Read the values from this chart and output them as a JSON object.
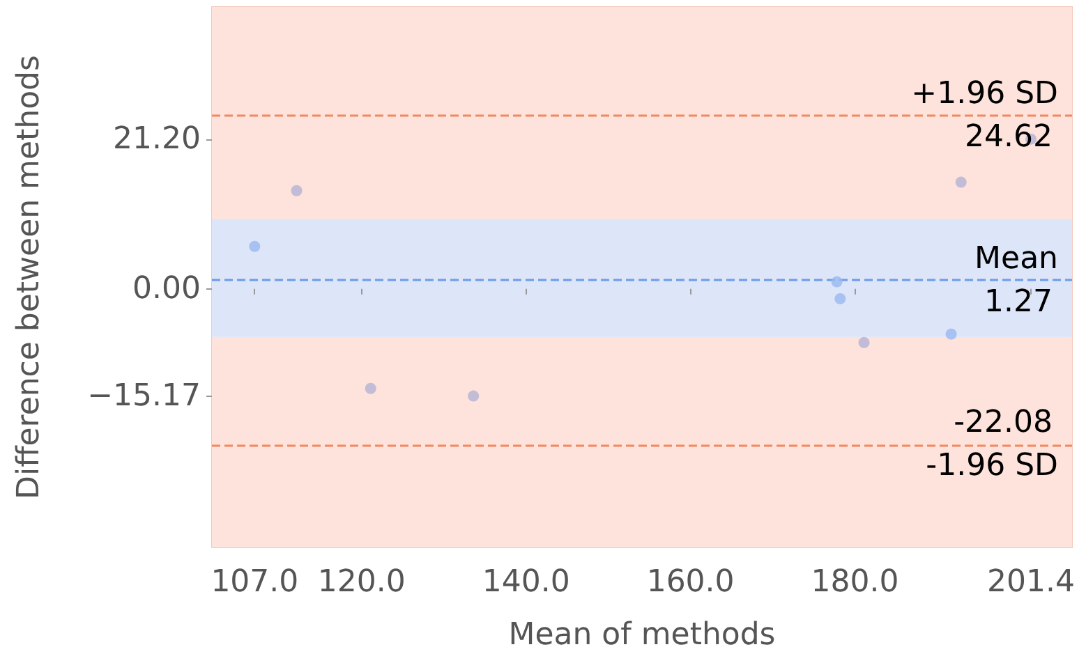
{
  "chart_data": {
    "type": "scatter",
    "xlabel": "Mean of methods",
    "ylabel": "Difference between methods",
    "x": [
      107.0,
      112.1,
      121.1,
      133.6,
      177.8,
      178.2,
      181.1,
      191.7,
      192.9,
      201.4
    ],
    "values": [
      6.0,
      13.9,
      -14.1,
      -15.17,
      1.0,
      -1.4,
      -7.6,
      -6.4,
      15.1,
      21.2
    ],
    "colors": [
      "#9ab8f0",
      "#b4b2d6",
      "#b4b2d6",
      "#b4b2d6",
      "#9ab8f0",
      "#9ab8f0",
      "#b4b2d6",
      "#9ab8f0",
      "#b4b2d6",
      "#b4b2d6"
    ],
    "marker": "circle",
    "xlim": [
      101.8,
      206.4
    ],
    "ylim": [
      -36.6,
      39.9
    ],
    "xticks": [
      {
        "value": 107.0,
        "label": "107.0"
      },
      {
        "value": 120,
        "label": "120.0"
      },
      {
        "value": 140,
        "label": "140.0"
      },
      {
        "value": 160,
        "label": "160.0"
      },
      {
        "value": 180,
        "label": "180.0"
      },
      {
        "value": 201.4,
        "label": "201.4"
      }
    ],
    "yticks": [
      {
        "value": -15.17,
        "label": "−15.17"
      },
      {
        "value": 0,
        "label": "0.00"
      },
      {
        "value": 21.2,
        "label": "21.20"
      }
    ],
    "grid": false,
    "bands": [
      {
        "axis": "y",
        "from": -36.6,
        "to": -6.8,
        "color": "#fde3db"
      },
      {
        "axis": "y",
        "from": -6.8,
        "to": 9.9,
        "color": "#dde5f8"
      },
      {
        "axis": "y",
        "from": 9.9,
        "to": 39.9,
        "color": "#fde3db"
      }
    ],
    "ref_lines": [
      {
        "axis": "y",
        "value": 24.62,
        "label": "+1.96 SD",
        "color": "#f4875f",
        "line_style": "dashed"
      },
      {
        "axis": "y",
        "value": 1.27,
        "label": "Mean",
        "color": "#6f9be8",
        "line_style": "dashed"
      },
      {
        "axis": "y",
        "value": -22.08,
        "label": "-1.96 SD",
        "color": "#f4875f",
        "line_style": "dashed"
      }
    ],
    "annotations": [
      {
        "text": "24.62",
        "y": 24.62
      },
      {
        "text": "1.27",
        "y": 1.27
      },
      {
        "text": "-22.08",
        "y": -22.08
      }
    ]
  }
}
